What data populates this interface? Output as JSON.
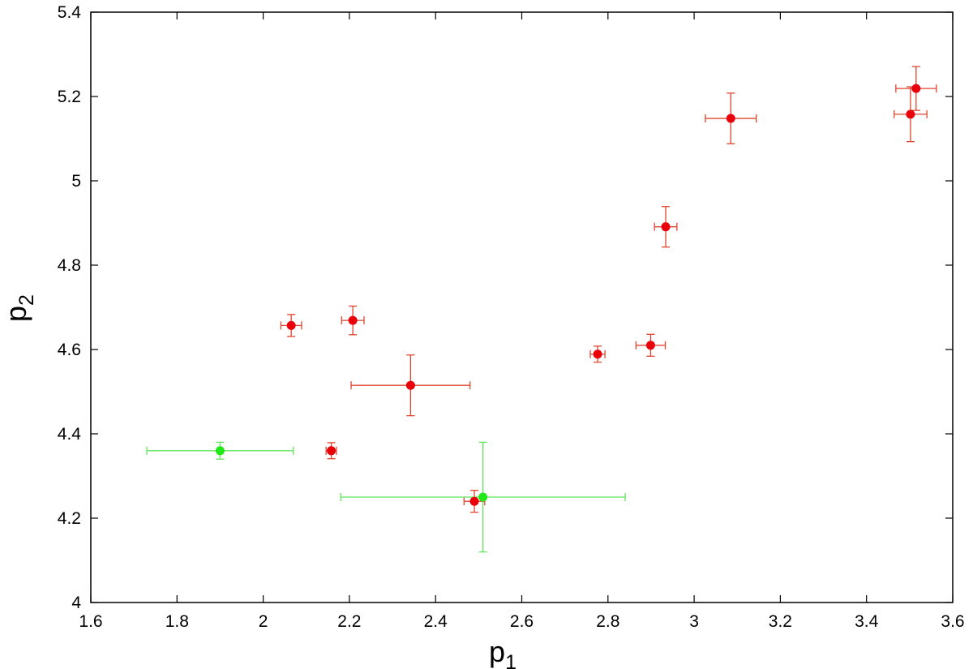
{
  "chart_data": {
    "type": "scatter",
    "title": "",
    "xlabel": "p",
    "xlabel_subscript": "1",
    "ylabel": "p",
    "ylabel_subscript": "2",
    "xlim": [
      1.6,
      3.6
    ],
    "ylim": [
      4.0,
      5.4
    ],
    "xticks": [
      1.6,
      1.8,
      2.0,
      2.2,
      2.4,
      2.6,
      2.8,
      3.0,
      3.2,
      3.4,
      3.6
    ],
    "xtick_labels": [
      "1.6",
      "1.8",
      "2",
      "2.2",
      "2.4",
      "2.6",
      "2.8",
      "3",
      "3.2",
      "3.4",
      "3.6"
    ],
    "yticks": [
      4.0,
      4.2,
      4.4,
      4.6,
      4.8,
      5.0,
      5.2,
      5.4
    ],
    "ytick_labels": [
      "4",
      "4.2",
      "4.4",
      "4.6",
      "4.8",
      "5",
      "5.2",
      "5.4"
    ],
    "grid": false,
    "legend": "none",
    "series": [
      {
        "color": "#e8000b",
        "errorbar_color": "#e0442f",
        "points": [
          {
            "x": 2.065,
            "y": 4.657,
            "xerr": 0.024,
            "yerr": 0.026
          },
          {
            "x": 2.208,
            "y": 4.669,
            "xerr": 0.026,
            "yerr": 0.034
          },
          {
            "x": 2.342,
            "y": 4.515,
            "xerr": 0.138,
            "yerr": 0.072
          },
          {
            "x": 2.158,
            "y": 4.36,
            "xerr": 0.012,
            "yerr": 0.019
          },
          {
            "x": 2.49,
            "y": 4.24,
            "xerr": 0.024,
            "yerr": 0.026
          },
          {
            "x": 2.776,
            "y": 4.589,
            "xerr": 0.017,
            "yerr": 0.019
          },
          {
            "x": 2.899,
            "y": 4.61,
            "xerr": 0.034,
            "yerr": 0.026
          },
          {
            "x": 2.934,
            "y": 4.891,
            "xerr": 0.026,
            "yerr": 0.048
          },
          {
            "x": 3.085,
            "y": 5.148,
            "xerr": 0.059,
            "yerr": 0.06
          },
          {
            "x": 3.502,
            "y": 5.158,
            "xerr": 0.038,
            "yerr": 0.065
          },
          {
            "x": 3.515,
            "y": 5.219,
            "xerr": 0.047,
            "yerr": 0.052
          }
        ]
      },
      {
        "color": "#22e81a",
        "errorbar_color": "#5ee65a",
        "points": [
          {
            "x": 1.9,
            "y": 4.36,
            "xerr": 0.17,
            "yerr": 0.02
          },
          {
            "x": 2.51,
            "y": 4.25,
            "xerr": 0.33,
            "yerr": 0.13
          }
        ]
      }
    ]
  }
}
